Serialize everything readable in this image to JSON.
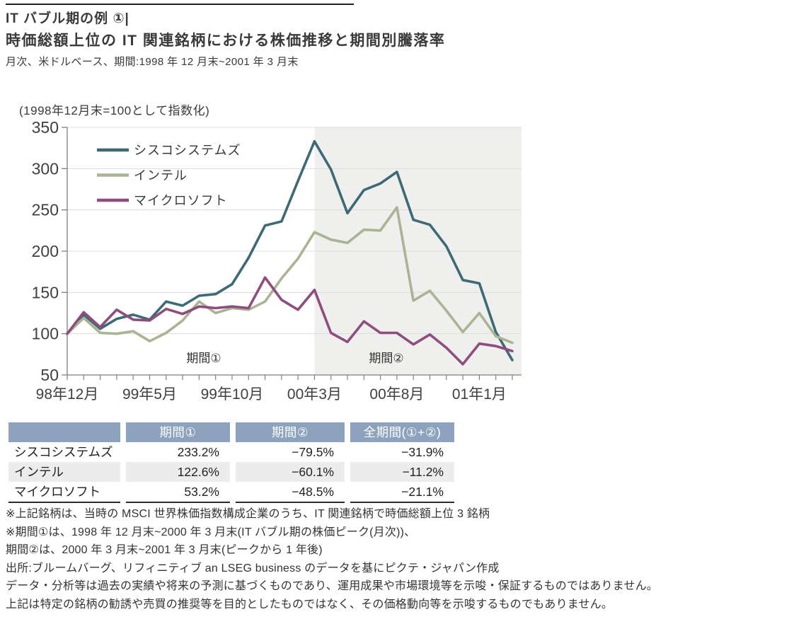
{
  "header": {
    "title_line1": "IT バブル期の例 ①|",
    "title_line2": "時価総額上位の IT 関連銘柄における株価推移と期間別騰落率",
    "subtitle": "月次、米ドルベース、期間:1998 年 12 月末~2001 年 3 月末"
  },
  "chart_data": {
    "type": "line",
    "title": "(1998年12月末=100として指数化)",
    "n_points": 28,
    "x_range_note": "monthly from 1998-12 to 2001-03",
    "x_tick_labels": [
      {
        "index": 0,
        "label": "98年12月"
      },
      {
        "index": 5,
        "label": "99年5月"
      },
      {
        "index": 10,
        "label": "99年10月"
      },
      {
        "index": 15,
        "label": "00年3月"
      },
      {
        "index": 20,
        "label": "00年8月"
      },
      {
        "index": 25,
        "label": "01年1月"
      }
    ],
    "ylim": [
      50,
      350
    ],
    "yticks": [
      50,
      100,
      150,
      200,
      250,
      300,
      350
    ],
    "grid": true,
    "legend_position": "top-left-inside",
    "series": [
      {
        "id": "cisco",
        "name": "シスコシステムズ",
        "color": "#3D6A76",
        "values": [
          100,
          123,
          106,
          118,
          123,
          117,
          139,
          134,
          146,
          148,
          160,
          192,
          231,
          236,
          285,
          333,
          299,
          246,
          274,
          282,
          296,
          238,
          232,
          206,
          165,
          161,
          102,
          68
        ]
      },
      {
        "id": "intel",
        "name": "インテル",
        "color": "#A8B492",
        "values": [
          100,
          119,
          101,
          100,
          103,
          91,
          101,
          116,
          139,
          125,
          131,
          129,
          139,
          167,
          191,
          223,
          214,
          210,
          226,
          225,
          253,
          140,
          152,
          128,
          102,
          125,
          97,
          89
        ]
      },
      {
        "id": "microsoft",
        "name": "マイクロソフト",
        "color": "#8E4D7E",
        "values": [
          100,
          126,
          108,
          129,
          117,
          116,
          130,
          124,
          133,
          131,
          133,
          131,
          168,
          141,
          129,
          153,
          101,
          90,
          115,
          101,
          101,
          87,
          99,
          83,
          63,
          88,
          85,
          79
        ]
      }
    ],
    "annotations": {
      "period1": "期間①",
      "period2": "期間②"
    },
    "shaded_region": {
      "start_index": 15,
      "end_index": 27,
      "color": "#EFEFED"
    },
    "axis_color": "#7F7F7F",
    "grid_color": "#DCDCDC",
    "tick_label_color": "#404040"
  },
  "table": {
    "header_bg": "#8DA2BC",
    "alt_row_bg": "#ECECEC",
    "headers": [
      "",
      "期間①",
      "期間②",
      "全期間(①+②)"
    ],
    "rows": [
      {
        "label": "シスコシステムズ",
        "period1": "233.2%",
        "period2": "−79.5%",
        "total": "−31.9%"
      },
      {
        "label": "インテル",
        "period1": "122.6%",
        "period2": "−60.1%",
        "total": "−11.2%"
      },
      {
        "label": "マイクロソフト",
        "period1": "53.2%",
        "period2": "−48.5%",
        "total": "−21.1%"
      }
    ]
  },
  "footnotes": [
    "※上記銘柄は、当時の MSCI 世界株価指数構成企業のうち、IT 関連銘柄で時価総額上位 3 銘柄",
    "※期間①は、1998 年 12 月末~2000 年 3 月末(IT バブル期の株価ピーク(月次))、",
    "期間②は、2000 年 3 月末~2001 年 3 月末(ピークから 1 年後)",
    "出所:ブルームバーグ、リフィニティブ  an LSEG business のデータを基にピクテ・ジャパン作成",
    "データ・分析等は過去の実績や将来の予測に基づくものであり、運用成果や市場環境等を示唆・保証するものではありません。",
    "上記は特定の銘柄の勧誘や売買の推奨等を目的としたものではなく、その価格動向等を示唆するものでもありません。"
  ]
}
